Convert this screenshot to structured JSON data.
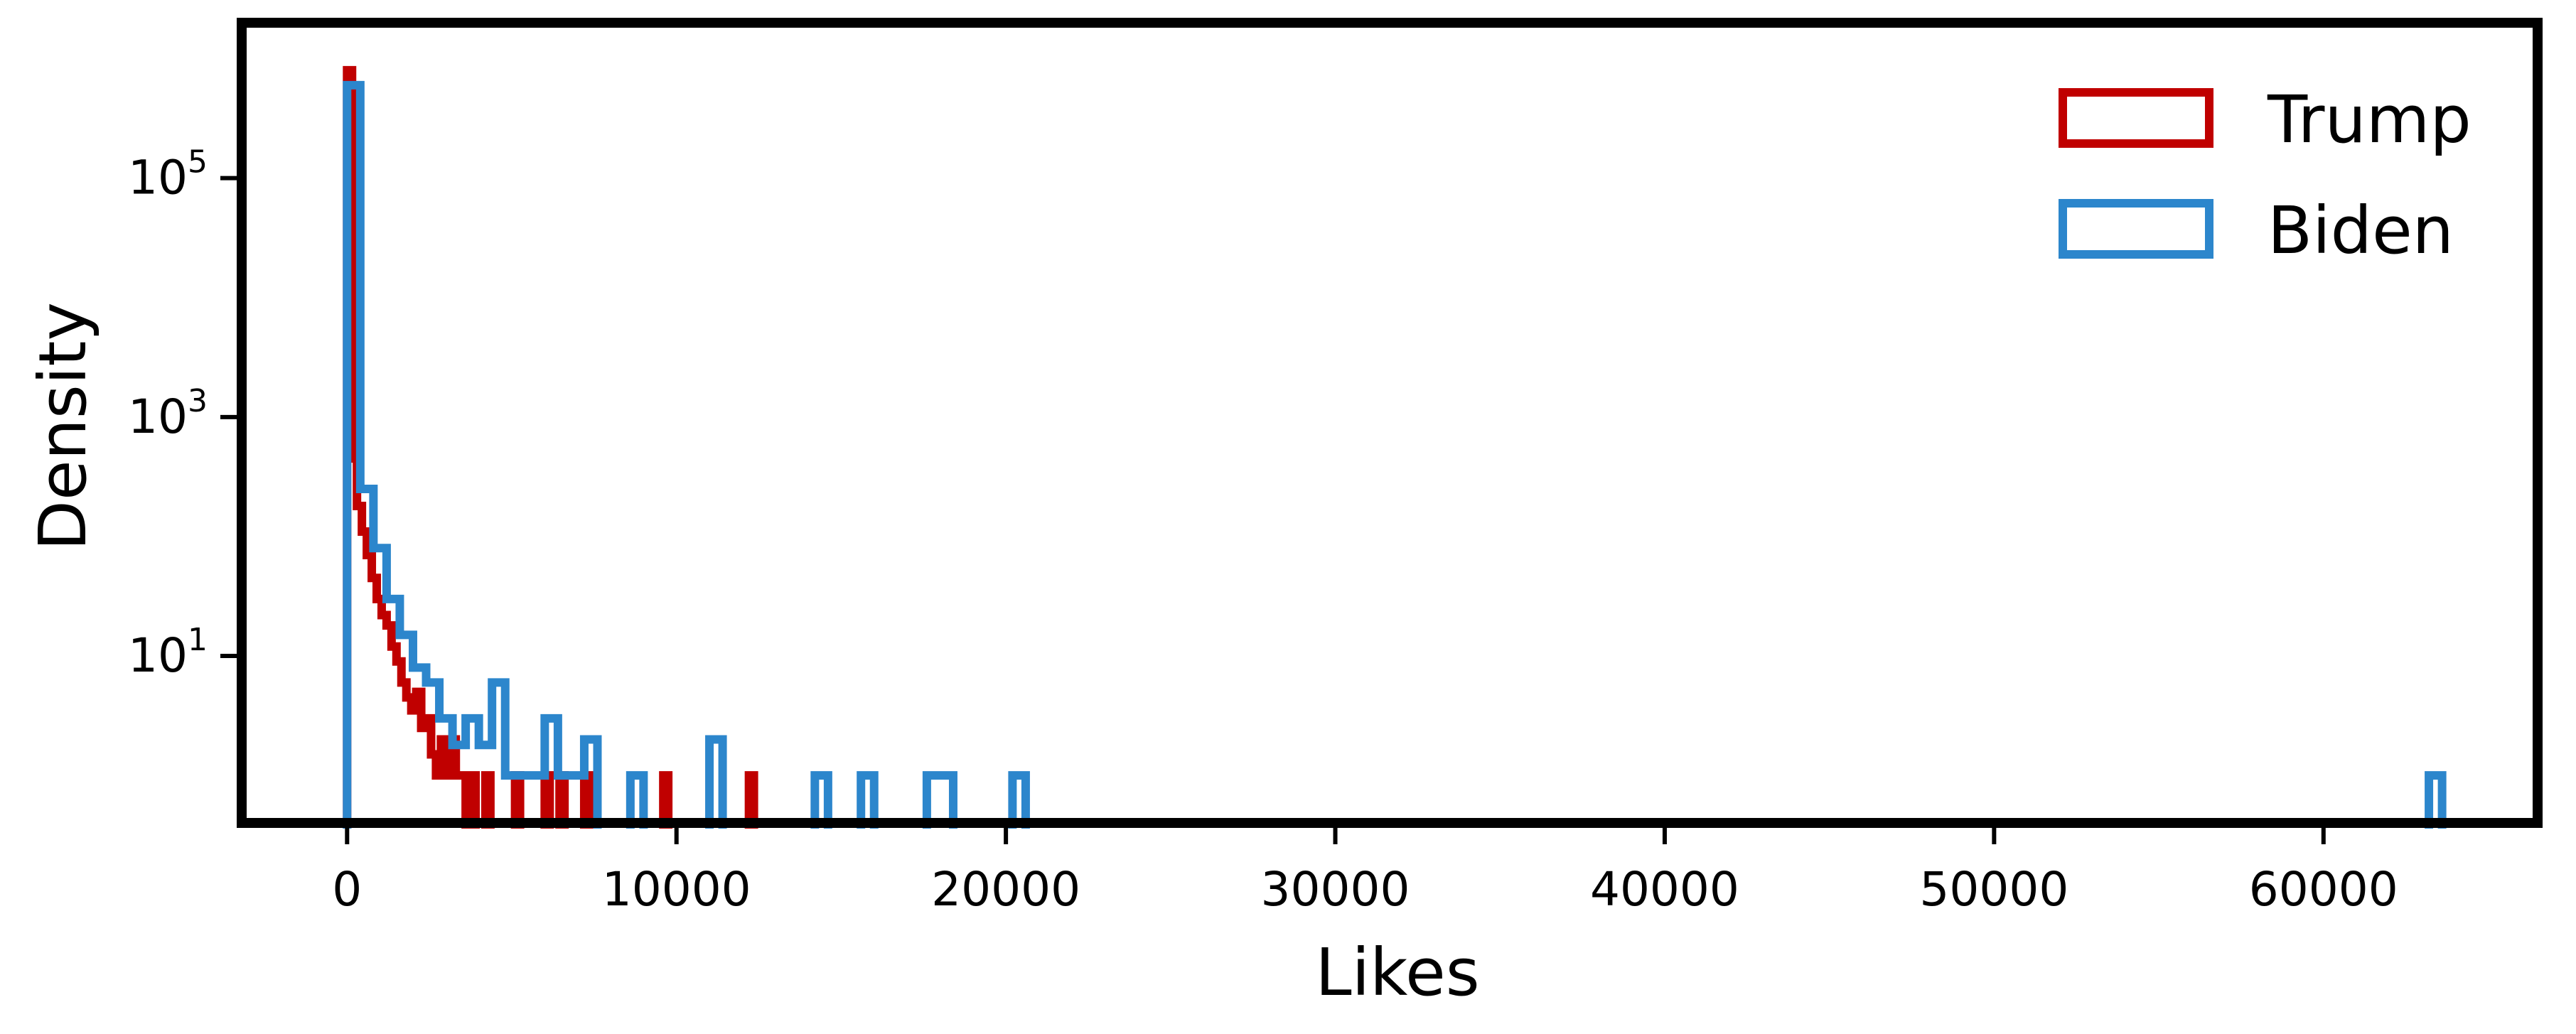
{
  "chart_data": {
    "type": "histogram",
    "title": "",
    "xlabel": "Likes",
    "ylabel": "Density",
    "xlim": [
      -3200,
      66500
    ],
    "x_ticks": [
      0,
      10000,
      20000,
      30000,
      40000,
      50000,
      60000
    ],
    "y_scale": "log",
    "ylim": [
      0.4,
      2000000
    ],
    "y_ticks": [
      {
        "value": 10,
        "base": "10",
        "exp": "1"
      },
      {
        "value": 1000,
        "base": "10",
        "exp": "3"
      },
      {
        "value": 100000,
        "base": "10",
        "exp": "5"
      }
    ],
    "grid": false,
    "legend_position": "top-right",
    "series": [
      {
        "name": "Trump",
        "color": "#c00000",
        "bins": [
          [
            0,
            150,
            800000
          ],
          [
            150,
            300,
            450
          ],
          [
            300,
            450,
            180
          ],
          [
            450,
            600,
            110
          ],
          [
            600,
            750,
            70
          ],
          [
            750,
            900,
            45
          ],
          [
            900,
            1050,
            30
          ],
          [
            1050,
            1200,
            22
          ],
          [
            1200,
            1350,
            18
          ],
          [
            1350,
            1500,
            12
          ],
          [
            1500,
            1650,
            9
          ],
          [
            1650,
            1800,
            6
          ],
          [
            1800,
            1950,
            4.5
          ],
          [
            1950,
            2100,
            3.5
          ],
          [
            2100,
            2250,
            5
          ],
          [
            2250,
            2400,
            2.5
          ],
          [
            2400,
            2550,
            3
          ],
          [
            2550,
            2700,
            1.5
          ],
          [
            2700,
            2850,
            1
          ],
          [
            2850,
            3000,
            2
          ],
          [
            3000,
            3150,
            1
          ],
          [
            3150,
            3300,
            2
          ],
          [
            3300,
            3450,
            1
          ],
          [
            3450,
            3600,
            1
          ],
          [
            3750,
            3900,
            1
          ],
          [
            4200,
            4350,
            1
          ],
          [
            5100,
            5250,
            1
          ],
          [
            6000,
            6150,
            1
          ],
          [
            6450,
            6600,
            1
          ],
          [
            7200,
            7350,
            1
          ],
          [
            9600,
            9750,
            1
          ],
          [
            12200,
            12350,
            1
          ]
        ]
      },
      {
        "name": "Biden",
        "color": "#2c86cc",
        "bins": [
          [
            0,
            400,
            600000
          ],
          [
            400,
            800,
            250
          ],
          [
            800,
            1200,
            80
          ],
          [
            1200,
            1600,
            30
          ],
          [
            1600,
            2000,
            15
          ],
          [
            2000,
            2400,
            8
          ],
          [
            2400,
            2800,
            6
          ],
          [
            2800,
            3200,
            3
          ],
          [
            3200,
            3600,
            1.8
          ],
          [
            3600,
            4000,
            3
          ],
          [
            4000,
            4400,
            1.8
          ],
          [
            4400,
            4800,
            6
          ],
          [
            4800,
            5200,
            1
          ],
          [
            5200,
            5600,
            1
          ],
          [
            5600,
            6000,
            1
          ],
          [
            6000,
            6400,
            3
          ],
          [
            6400,
            6800,
            1
          ],
          [
            6800,
            7200,
            1
          ],
          [
            7200,
            7600,
            2
          ],
          [
            8600,
            9000,
            1
          ],
          [
            11000,
            11400,
            2
          ],
          [
            14200,
            14600,
            1
          ],
          [
            15600,
            16000,
            1
          ],
          [
            17600,
            18400,
            1
          ],
          [
            20200,
            20600,
            1
          ],
          [
            63200,
            63600,
            1
          ]
        ]
      }
    ]
  }
}
